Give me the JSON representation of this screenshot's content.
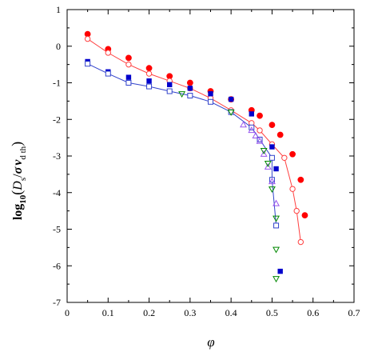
{
  "chart_data": {
    "type": "scatter",
    "title": "",
    "xlabel": "φ",
    "ylabel": {
      "prefix": "log",
      "prefix_sub": "10",
      "open": "(",
      "D": "D",
      "D_sub": "s",
      "slash": "/",
      "sigma": "σ",
      "v": "v",
      "v_sub": "d th",
      "close": ")"
    },
    "xlim": [
      0,
      0.7
    ],
    "ylim": [
      -7,
      1
    ],
    "xticks": [
      0,
      0.1,
      0.2,
      0.3,
      0.4,
      0.5,
      0.6,
      0.7
    ],
    "xtick_labels": [
      "0",
      "0.1",
      "0.2",
      "0.3",
      "0.4",
      "0.5",
      "0.6",
      "0.7"
    ],
    "yticks": [
      -7,
      -6,
      -5,
      -4,
      -3,
      -2,
      -1,
      0,
      1
    ],
    "ytick_labels": [
      "-7",
      "-6",
      "-5",
      "-4",
      "-3",
      "-2",
      "-1",
      "0",
      "1"
    ],
    "grid": false,
    "legend": "none",
    "series": [
      {
        "marker": "filled-circle",
        "color": "#ff0000",
        "x": [
          0.05,
          0.1,
          0.15,
          0.2,
          0.25,
          0.3,
          0.35,
          0.4,
          0.45,
          0.47,
          0.5,
          0.52,
          0.55,
          0.57,
          0.58
        ],
        "y": [
          0.33,
          -0.08,
          -0.32,
          -0.6,
          -0.82,
          -1.0,
          -1.23,
          -1.45,
          -1.75,
          -1.9,
          -2.15,
          -2.42,
          -2.95,
          -3.65,
          -4.62
        ]
      },
      {
        "marker": "open-circle",
        "color": "#ff4040",
        "line": true,
        "x": [
          0.05,
          0.1,
          0.15,
          0.2,
          0.25,
          0.3,
          0.35,
          0.4,
          0.45,
          0.47,
          0.5,
          0.53,
          0.55,
          0.56,
          0.57
        ],
        "y": [
          0.2,
          -0.18,
          -0.5,
          -0.75,
          -0.95,
          -1.15,
          -1.42,
          -1.75,
          -2.1,
          -2.3,
          -2.68,
          -3.05,
          -3.9,
          -4.5,
          -5.35
        ]
      },
      {
        "marker": "filled-square",
        "color": "#0000cc",
        "x": [
          0.05,
          0.1,
          0.15,
          0.2,
          0.25,
          0.3,
          0.35,
          0.4,
          0.45,
          0.47,
          0.5,
          0.51,
          0.52
        ],
        "y": [
          -0.42,
          -0.7,
          -0.85,
          -0.95,
          -1.05,
          -1.15,
          -1.3,
          -1.45,
          -1.85,
          -2.55,
          -2.75,
          -3.35,
          -6.15
        ]
      },
      {
        "marker": "open-square",
        "color": "#3344cc",
        "line": true,
        "x": [
          0.05,
          0.1,
          0.15,
          0.2,
          0.25,
          0.3,
          0.35,
          0.4,
          0.45,
          0.47,
          0.5,
          0.5,
          0.51
        ],
        "y": [
          -0.48,
          -0.75,
          -1.0,
          -1.1,
          -1.23,
          -1.35,
          -1.52,
          -1.8,
          -2.22,
          -2.55,
          -3.05,
          -3.65,
          -4.9
        ]
      },
      {
        "marker": "open-triangle-up",
        "color": "#9955ee",
        "x": [
          0.43,
          0.45,
          0.46,
          0.47,
          0.48,
          0.49,
          0.5,
          0.51
        ],
        "y": [
          -2.15,
          -2.3,
          -2.45,
          -2.6,
          -2.95,
          -3.3,
          -3.7,
          -4.3
        ]
      },
      {
        "marker": "open-triangle-down",
        "color": "#008800",
        "x": [
          0.28,
          0.4,
          0.48,
          0.49,
          0.5,
          0.51,
          0.51,
          0.51
        ],
        "y": [
          -1.3,
          -1.8,
          -2.85,
          -3.2,
          -3.9,
          -4.7,
          -5.55,
          -6.35
        ]
      }
    ]
  }
}
